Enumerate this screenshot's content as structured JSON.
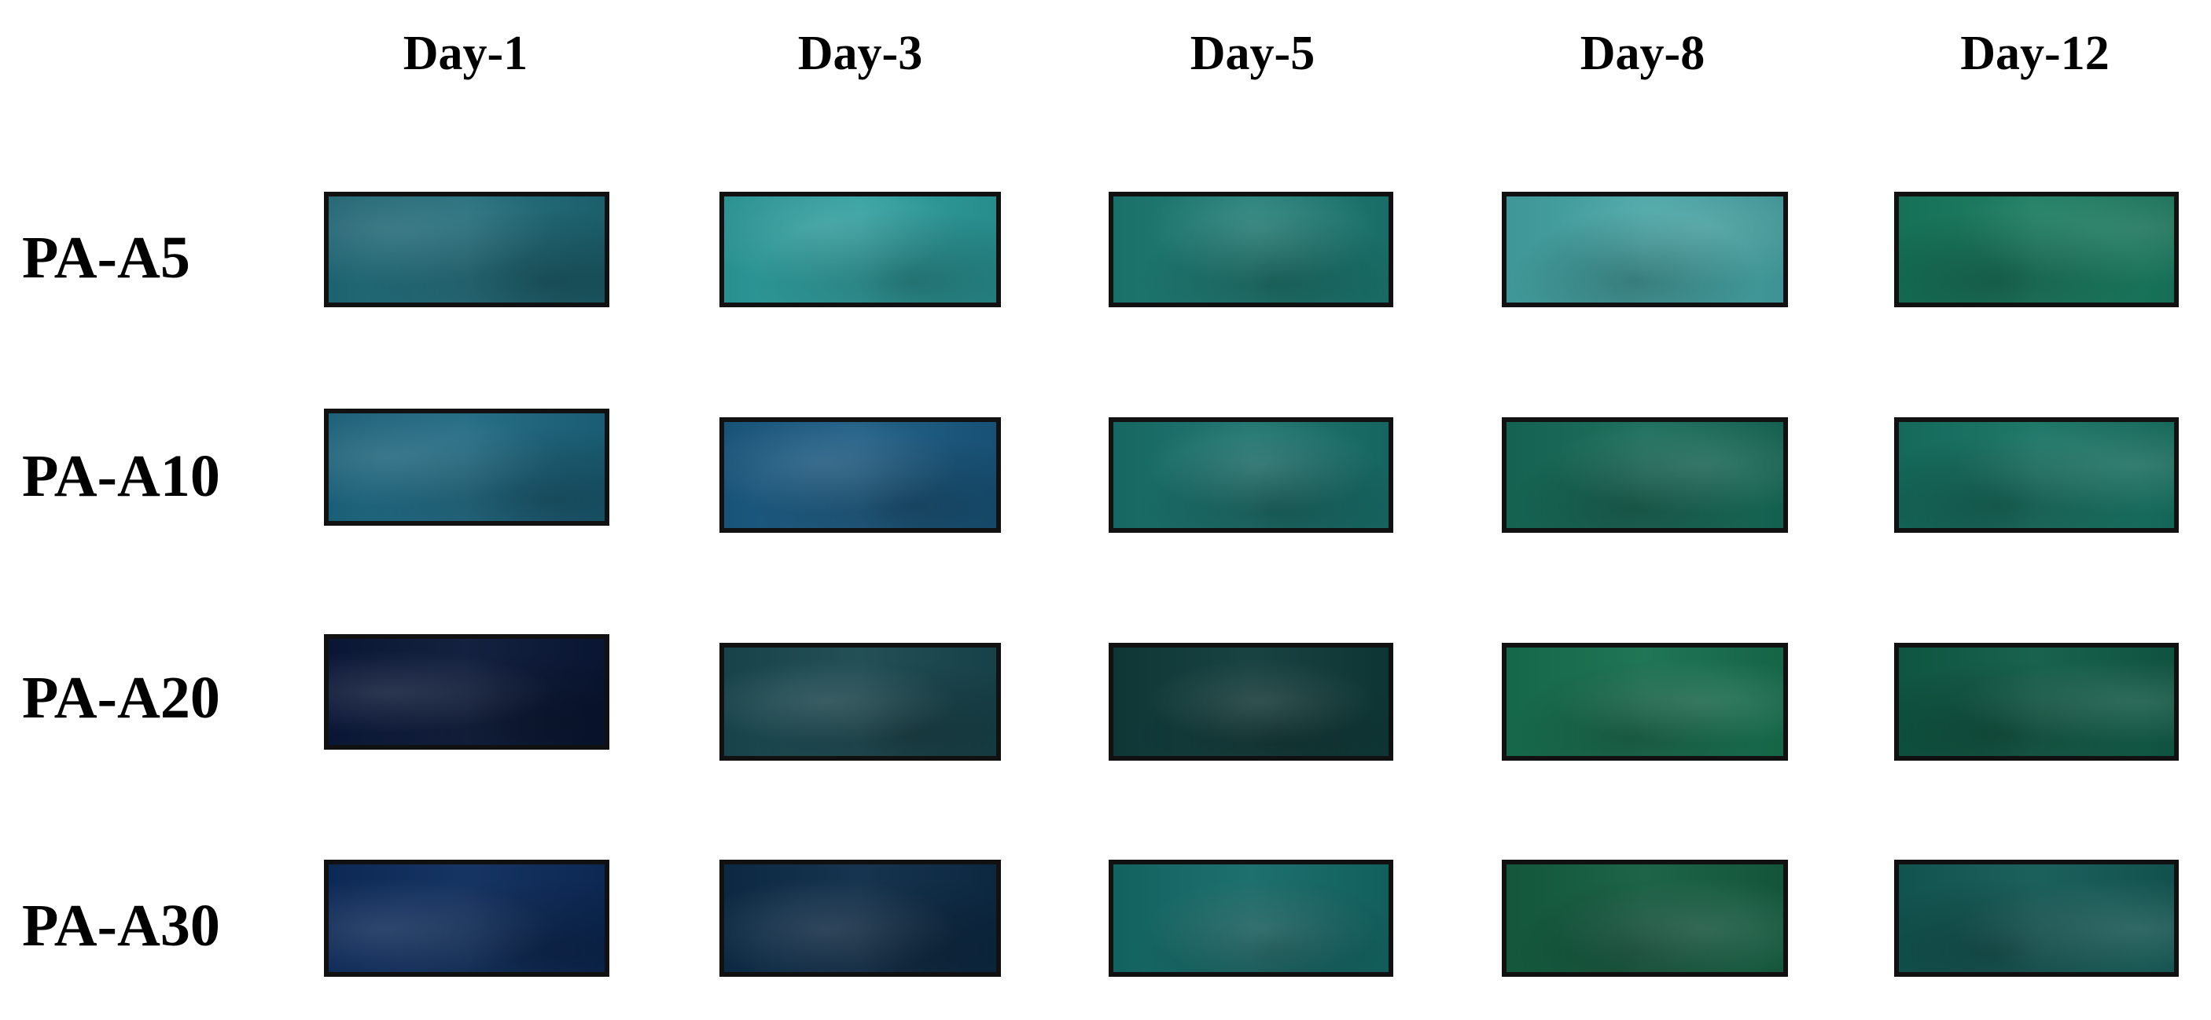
{
  "columns": [
    "Day-1",
    "Day-3",
    "Day-5",
    "Day-8",
    "Day-12"
  ],
  "rows": [
    "PA-A5",
    "PA-A10",
    "PA-A20",
    "PA-A30"
  ]
}
